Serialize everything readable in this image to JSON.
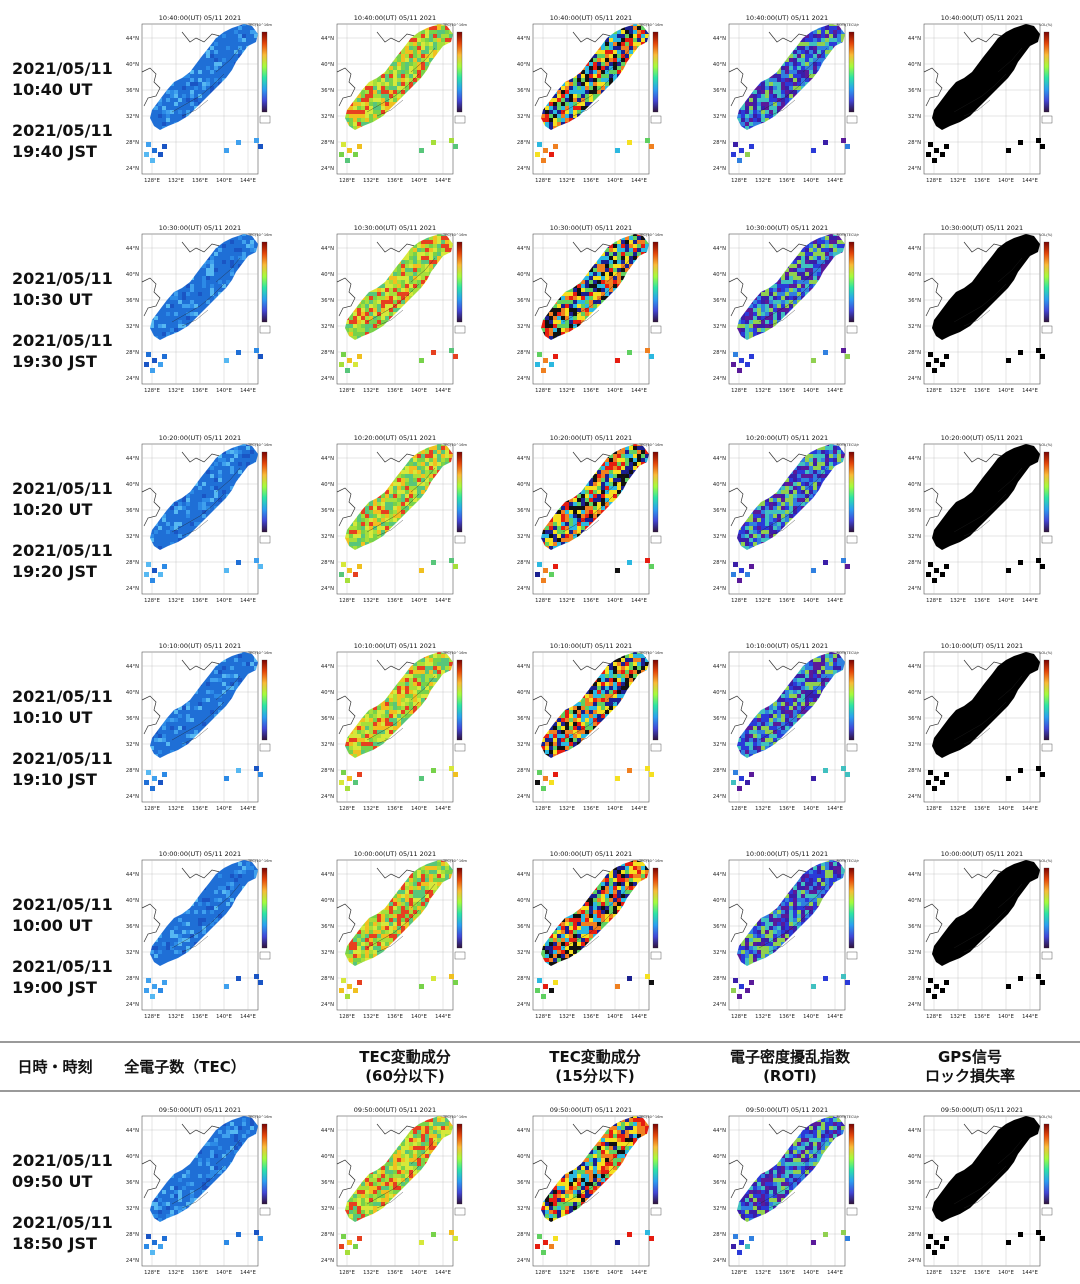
{
  "columns": [
    "日時・時刻",
    "全電子数（TEC）",
    "TEC変動成分\n(60分以下)",
    "TEC変動成分\n(15分以下)",
    "電子密度擾乱指数\n(ROTI)",
    "GPS信号\nロック損失率"
  ],
  "rows": [
    {
      "date_ut": "2021/05/11",
      "time_ut": "10:40 UT",
      "date_jst": "2021/05/11",
      "time_jst": "19:40 JST",
      "map_time": "10:40:00(UT) 05/11 2021"
    },
    {
      "date_ut": "2021/05/11",
      "time_ut": "10:30 UT",
      "date_jst": "2021/05/11",
      "time_jst": "19:30 JST",
      "map_time": "10:30:00(UT) 05/11 2021"
    },
    {
      "date_ut": "2021/05/11",
      "time_ut": "10:20 UT",
      "date_jst": "2021/05/11",
      "time_jst": "19:20 JST",
      "map_time": "10:20:00(UT) 05/11 2021"
    },
    {
      "date_ut": "2021/05/11",
      "time_ut": "10:10 UT",
      "date_jst": "2021/05/11",
      "time_jst": "19:10 JST",
      "map_time": "10:10:00(UT) 05/11 2021"
    },
    {
      "date_ut": "2021/05/11",
      "time_ut": "10:00 UT",
      "date_jst": "2021/05/11",
      "time_jst": "19:00 JST",
      "map_time": "10:00:00(UT) 05/11 2021"
    },
    {
      "date_ut": "2021/05/11",
      "time_ut": "09:50 UT",
      "date_jst": "2021/05/11",
      "time_jst": "18:50 JST",
      "map_time": "09:50:00(UT) 05/11 2021"
    }
  ],
  "chart_data": {
    "type": "heatmap",
    "lat_ticks": [
      "44°N",
      "40°N",
      "36°N",
      "32°N",
      "28°N",
      "24°N"
    ],
    "lon_ticks": [
      "128°E",
      "132°E",
      "136°E",
      "140°E",
      "144°E"
    ],
    "panel_types": [
      "tec",
      "tec60",
      "tec15",
      "roti",
      "lol"
    ],
    "colorbar_labels": {
      "tec": "TEC(10^16m^-2)",
      "tec60": "TEC(10^16m^-2)",
      "tec15": "TEC(10^16m^-2)",
      "roti": "ROTI(TECU/min)",
      "lol": "LOL(%)"
    },
    "colors": {
      "tec": [
        "#1f6fd6",
        "#2c8ae6",
        "#3fa0ee",
        "#56b8f2",
        "#1a55c4"
      ],
      "tec60": [
        "#77d24a",
        "#a6df3a",
        "#58c67a",
        "#d6e83a",
        "#f0c020",
        "#e64020"
      ],
      "tec15": [
        "#e61c10",
        "#f5e020",
        "#2bb8e0",
        "#1a2090",
        "#111111",
        "#5fd060",
        "#f08020"
      ],
      "roti": [
        "#3a1ea8",
        "#2a3ad8",
        "#5a1a9a",
        "#3080e0",
        "#40c0c0",
        "#90d050"
      ],
      "lol": [
        "#000000"
      ]
    }
  }
}
